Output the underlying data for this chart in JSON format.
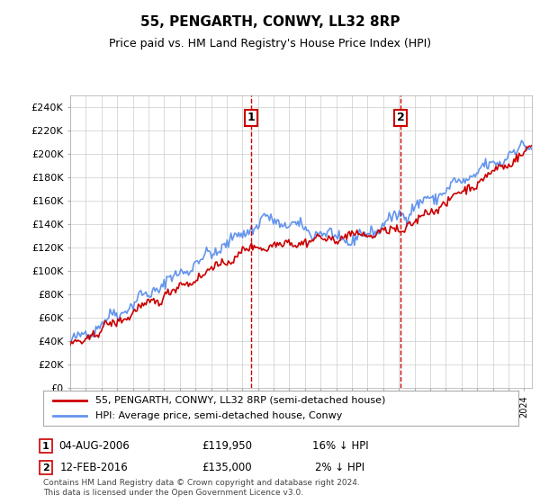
{
  "title": "55, PENGARTH, CONWY, LL32 8RP",
  "subtitle": "Price paid vs. HM Land Registry's House Price Index (HPI)",
  "ylabel_ticks": [
    "£0",
    "£20K",
    "£40K",
    "£60K",
    "£80K",
    "£100K",
    "£120K",
    "£140K",
    "£160K",
    "£180K",
    "£200K",
    "£220K",
    "£240K"
  ],
  "ytick_vals": [
    0,
    20000,
    40000,
    60000,
    80000,
    100000,
    120000,
    140000,
    160000,
    180000,
    200000,
    220000,
    240000
  ],
  "ylim": [
    0,
    250000
  ],
  "xlim_start": 1995.0,
  "xlim_end": 2024.5,
  "transaction1": {
    "date_num": 2006.58,
    "price": 119950,
    "label": "1",
    "desc": "04-AUG-2006",
    "pct": "16% ↓ HPI"
  },
  "transaction2": {
    "date_num": 2016.12,
    "price": 135000,
    "label": "2",
    "desc": "12-FEB-2016",
    "pct": "2% ↓ HPI"
  },
  "legend_line1": "55, PENGARTH, CONWY, LL32 8RP (semi-detached house)",
  "legend_line2": "HPI: Average price, semi-detached house, Conwy",
  "footer": "Contains HM Land Registry data © Crown copyright and database right 2024.\nThis data is licensed under the Open Government Licence v3.0.",
  "hpi_color": "#6495ED",
  "price_color": "#CC0000",
  "marker_color": "#CC0000",
  "bg_color": "#FFFFFF",
  "grid_color": "#CCCCCC"
}
